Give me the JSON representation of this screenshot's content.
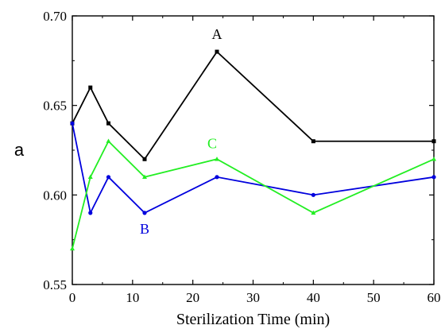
{
  "chart_data": {
    "type": "line",
    "xlabel": "Sterilization Time (min)",
    "ylabel": "a",
    "xlim": [
      0,
      60
    ],
    "ylim": [
      0.55,
      0.7
    ],
    "x_ticks": [
      0,
      10,
      20,
      30,
      40,
      50,
      60
    ],
    "y_ticks": [
      0.55,
      0.6,
      0.65,
      0.7
    ],
    "y_tick_labels": [
      "0.55",
      "0.60",
      "0.65",
      "0.70"
    ],
    "grid": false,
    "series": [
      {
        "name": "A",
        "color": "#000000",
        "marker": "square",
        "x": [
          0,
          3,
          6,
          12,
          24,
          40,
          60
        ],
        "y": [
          0.64,
          0.66,
          0.64,
          0.62,
          0.68,
          0.63,
          0.63
        ]
      },
      {
        "name": "B",
        "color": "#0000dd",
        "marker": "circle",
        "x": [
          0,
          3,
          6,
          12,
          24,
          40,
          60
        ],
        "y": [
          0.64,
          0.59,
          0.61,
          0.59,
          0.61,
          0.6,
          0.61
        ]
      },
      {
        "name": "C",
        "color": "#22ee22",
        "marker": "triangle",
        "x": [
          0,
          3,
          6,
          12,
          24,
          40,
          60
        ],
        "y": [
          0.57,
          0.61,
          0.63,
          0.61,
          0.62,
          0.59,
          0.62
        ]
      }
    ]
  }
}
